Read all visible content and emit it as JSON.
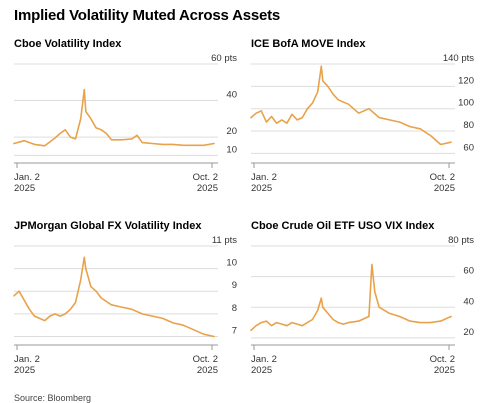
{
  "title": "Implied Volatility Muted Across Assets",
  "source": "Source: Bloomberg",
  "colors": {
    "line": "#e8a24a",
    "grid": "#dddddd",
    "axis": "#999999",
    "text": "#333333"
  },
  "chart_data": [
    {
      "type": "line",
      "title": "Cboe Volatility Index",
      "unit": "pts",
      "yticks": [
        "10",
        "20",
        "40",
        "60 pts"
      ],
      "ytick_values": [
        10,
        20,
        40,
        60
      ],
      "ylim": [
        8,
        60
      ],
      "xlabels": [
        {
          "line1": "Jan. 2",
          "line2": "2025"
        },
        {
          "line1": "Oct. 2",
          "line2": "2025"
        }
      ],
      "x": [
        "2025-01-02",
        "2025-01-16",
        "2025-01-30",
        "2025-02-13",
        "2025-02-27",
        "2025-03-06",
        "2025-03-13",
        "2025-03-20",
        "2025-03-27",
        "2025-04-03",
        "2025-04-08",
        "2025-04-10",
        "2025-04-17",
        "2025-04-24",
        "2025-05-01",
        "2025-05-08",
        "2025-05-15",
        "2025-05-29",
        "2025-06-12",
        "2025-06-19",
        "2025-06-26",
        "2025-07-10",
        "2025-07-24",
        "2025-08-07",
        "2025-08-21",
        "2025-09-04",
        "2025-09-18",
        "2025-10-02"
      ],
      "values": [
        16.5,
        18,
        16,
        15.2,
        19.5,
        22,
        24,
        20,
        19,
        30,
        46,
        34,
        30,
        25,
        24,
        22,
        18.5,
        18.5,
        19,
        21,
        17,
        16.5,
        16,
        16,
        15.5,
        15.5,
        15.5,
        16.5
      ]
    },
    {
      "type": "line",
      "title": "ICE BofA MOVE Index",
      "unit": "pts",
      "yticks": [
        "60",
        "80",
        "100",
        "120",
        "140 pts"
      ],
      "ytick_values": [
        60,
        80,
        100,
        120,
        140
      ],
      "ylim": [
        55,
        140
      ],
      "xlabels": [
        {
          "line1": "Jan. 2",
          "line2": "2025"
        },
        {
          "line1": "Oct. 2",
          "line2": "2025"
        }
      ],
      "x": [
        "2025-01-02",
        "2025-01-09",
        "2025-01-16",
        "2025-01-23",
        "2025-01-30",
        "2025-02-06",
        "2025-02-13",
        "2025-02-20",
        "2025-02-27",
        "2025-03-06",
        "2025-03-13",
        "2025-03-20",
        "2025-03-27",
        "2025-04-03",
        "2025-04-08",
        "2025-04-10",
        "2025-04-17",
        "2025-04-24",
        "2025-05-01",
        "2025-05-15",
        "2025-05-29",
        "2025-06-12",
        "2025-06-26",
        "2025-07-10",
        "2025-07-24",
        "2025-08-07",
        "2025-08-21",
        "2025-09-04",
        "2025-09-18",
        "2025-10-02"
      ],
      "values": [
        92,
        96,
        98,
        88,
        93,
        87,
        90,
        87,
        95,
        90,
        92,
        100,
        105,
        115,
        138,
        125,
        120,
        113,
        108,
        104,
        96,
        100,
        92,
        90,
        88,
        84,
        82,
        76,
        68,
        70
      ]
    },
    {
      "type": "line",
      "title": "JPMorgan Global FX Volatility Index",
      "unit": "pts",
      "yticks": [
        "7",
        "8",
        "9",
        "10",
        "11 pts"
      ],
      "ytick_values": [
        7,
        8,
        9,
        10,
        11
      ],
      "ylim": [
        6.8,
        11
      ],
      "xlabels": [
        {
          "line1": "Jan. 2",
          "line2": "2025"
        },
        {
          "line1": "Oct. 2",
          "line2": "2025"
        }
      ],
      "x": [
        "2025-01-02",
        "2025-01-09",
        "2025-01-16",
        "2025-01-23",
        "2025-01-30",
        "2025-02-06",
        "2025-02-13",
        "2025-02-20",
        "2025-02-27",
        "2025-03-06",
        "2025-03-13",
        "2025-03-20",
        "2025-03-27",
        "2025-04-03",
        "2025-04-08",
        "2025-04-10",
        "2025-04-17",
        "2025-04-24",
        "2025-05-01",
        "2025-05-15",
        "2025-05-29",
        "2025-06-12",
        "2025-06-26",
        "2025-07-10",
        "2025-07-24",
        "2025-08-07",
        "2025-08-21",
        "2025-09-04",
        "2025-09-18",
        "2025-10-02"
      ],
      "values": [
        8.8,
        9.0,
        8.6,
        8.2,
        7.9,
        7.8,
        7.7,
        7.9,
        8.0,
        7.9,
        8.0,
        8.2,
        8.5,
        9.5,
        10.5,
        10.0,
        9.2,
        9.0,
        8.7,
        8.4,
        8.3,
        8.2,
        8.0,
        7.9,
        7.8,
        7.6,
        7.5,
        7.3,
        7.1,
        7.0
      ]
    },
    {
      "type": "line",
      "title": "Cboe Crude Oil ETF USO VIX Index",
      "unit": "pts",
      "yticks": [
        "20",
        "40",
        "60",
        "80 pts"
      ],
      "ytick_values": [
        20,
        40,
        60,
        80
      ],
      "ylim": [
        18,
        80
      ],
      "xlabels": [
        {
          "line1": "Jan. 2",
          "line2": "2025"
        },
        {
          "line1": "Oct. 2",
          "line2": "2025"
        }
      ],
      "x": [
        "2025-01-02",
        "2025-01-09",
        "2025-01-16",
        "2025-01-23",
        "2025-01-30",
        "2025-02-06",
        "2025-02-13",
        "2025-02-20",
        "2025-02-27",
        "2025-03-06",
        "2025-03-13",
        "2025-03-20",
        "2025-03-27",
        "2025-04-03",
        "2025-04-08",
        "2025-04-10",
        "2025-04-17",
        "2025-04-24",
        "2025-05-01",
        "2025-05-08",
        "2025-05-15",
        "2025-05-29",
        "2025-06-12",
        "2025-06-16",
        "2025-06-20",
        "2025-06-26",
        "2025-07-10",
        "2025-07-24",
        "2025-08-07",
        "2025-08-21",
        "2025-09-04",
        "2025-09-18",
        "2025-10-02"
      ],
      "values": [
        25,
        28,
        30,
        31,
        28,
        30,
        29,
        28,
        30,
        29,
        28,
        30,
        32,
        38,
        46,
        40,
        36,
        32,
        30,
        29,
        30,
        31,
        34,
        68,
        50,
        40,
        36,
        34,
        31,
        30,
        30,
        31,
        34
      ]
    }
  ]
}
